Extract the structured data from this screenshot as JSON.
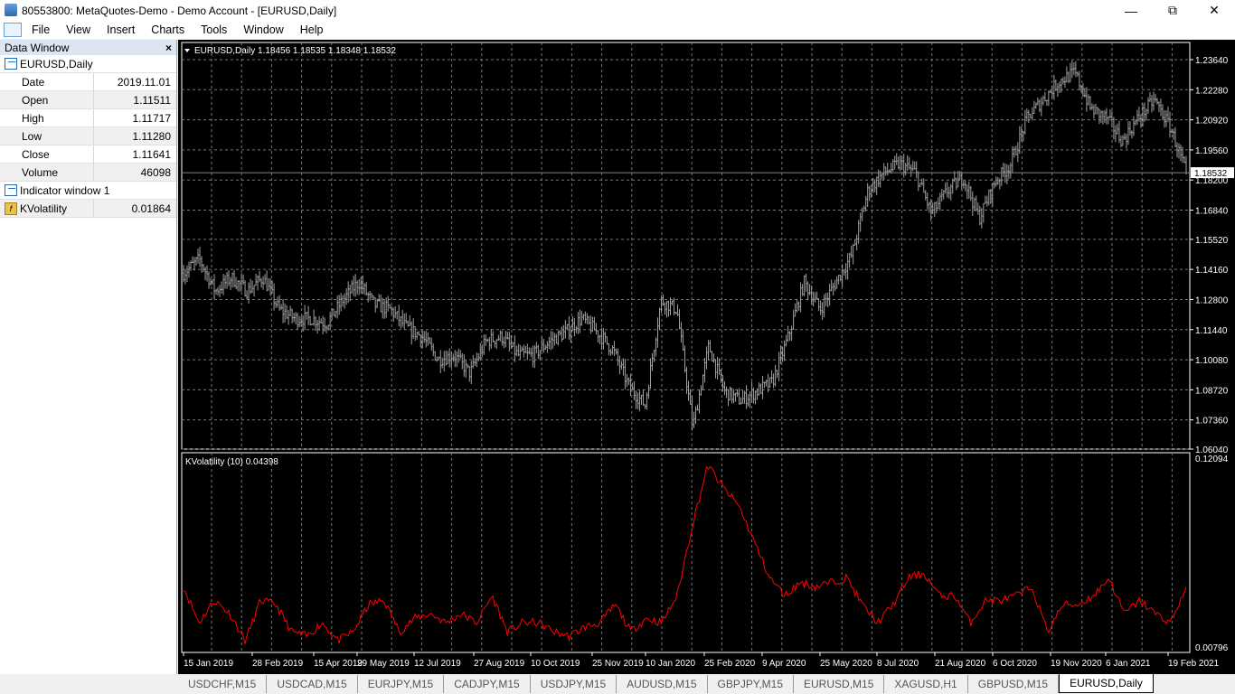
{
  "window": {
    "title": "80553800: MetaQuotes-Demo - Demo Account - [EURUSD,Daily]"
  },
  "menu": [
    "File",
    "View",
    "Insert",
    "Charts",
    "Tools",
    "Window",
    "Help"
  ],
  "data_window": {
    "title": "Data Window",
    "symbol": "EURUSD,Daily",
    "rows": [
      {
        "k": "Date",
        "v": "2019.11.01"
      },
      {
        "k": "Open",
        "v": "1.11511"
      },
      {
        "k": "High",
        "v": "1.11717"
      },
      {
        "k": "Low",
        "v": "1.11280"
      },
      {
        "k": "Close",
        "v": "1.11641"
      },
      {
        "k": "Volume",
        "v": "46098"
      }
    ],
    "indicator_group": "Indicator window 1",
    "indicator": {
      "k": "KVolatility",
      "v": "0.01864"
    }
  },
  "tabs": [
    "USDCHF,M15",
    "USDCAD,M15",
    "EURJPY,M15",
    "CADJPY,M15",
    "USDJPY,M15",
    "AUDUSD,M15",
    "GBPJPY,M15",
    "EURUSD,M15",
    "XAGUSD,H1",
    "GBPUSD,M15",
    "EURUSD,Daily"
  ],
  "active_tab": 10,
  "chart_data": {
    "type": "bar",
    "symbol_label": "EURUSD,Daily",
    "ohlc_label": "1.18456 1.18535 1.18348 1.18532",
    "price_ticks": [
      "1.23640",
      "1.22280",
      "1.20920",
      "1.19560",
      "1.18200",
      "1.16840",
      "1.15520",
      "1.14160",
      "1.12800",
      "1.11440",
      "1.10080",
      "1.08720",
      "1.07360",
      "1.06040"
    ],
    "ylim": [
      1.0604,
      1.2364
    ],
    "current_price": "1.18532",
    "bar_color": "#a0a0a0",
    "price_line_color": "#778899",
    "closes_sampled": [
      1.14,
      1.1462,
      1.1318,
      1.1379,
      1.1318,
      1.1379,
      1.1235,
      1.1194,
      1.1194,
      1.1173,
      1.1276,
      1.1359,
      1.1256,
      1.1235,
      1.1153,
      1.1112,
      1.1009,
      1.1029,
      1.0947,
      1.1091,
      1.1112,
      1.1029,
      1.1029,
      1.1091,
      1.1132,
      1.1194,
      1.1132,
      1.105,
      1.0885,
      1.0803,
      1.1276,
      1.1235,
      1.07,
      1.107,
      1.0864,
      1.0823,
      1.0864,
      1.0906,
      1.1112,
      1.1359,
      1.1235,
      1.1359,
      1.1482,
      1.1771,
      1.1853,
      1.1894,
      1.1853,
      1.1668,
      1.1771,
      1.1833,
      1.1647,
      1.1812,
      1.1894,
      1.21,
      1.2183,
      1.2265,
      1.2306,
      1.2142,
      1.21,
      1.1997,
      1.21,
      1.2183,
      1.2059,
      1.1853
    ],
    "x_ticks": [
      "15 Jan 2019",
      "28 Feb 2019",
      "15 Apr 2019",
      "29 May 2019",
      "12 Jul 2019",
      "27 Aug 2019",
      "10 Oct 2019",
      "25 Nov 2019",
      "10 Jan 2020",
      "25 Feb 2020",
      "9 Apr 2020",
      "25 May 2020",
      "8 Jul 2020",
      "21 Aug 2020",
      "6 Oct 2020",
      "19 Nov 2020",
      "6 Jan 2021",
      "19 Feb 2021"
    ],
    "indicator": {
      "label": "KVolatility (10) 0.04398",
      "ylim": [
        0.00796,
        0.12094
      ],
      "ticks": [
        "0.12094",
        "0.00796"
      ],
      "color": "#ff0000",
      "values_sampled": [
        0.044,
        0.0225,
        0.0359,
        0.0279,
        0.0117,
        0.0359,
        0.0333,
        0.0171,
        0.0144,
        0.0225,
        0.0117,
        0.0171,
        0.0333,
        0.0359,
        0.0171,
        0.0252,
        0.0279,
        0.0225,
        0.0279,
        0.0225,
        0.0386,
        0.0171,
        0.0225,
        0.0225,
        0.0171,
        0.0144,
        0.0198,
        0.0225,
        0.0333,
        0.0171,
        0.0252,
        0.0225,
        0.0386,
        0.0817,
        0.1166,
        0.1032,
        0.0924,
        0.0709,
        0.0494,
        0.0386,
        0.0467,
        0.044,
        0.0467,
        0.0494,
        0.0333,
        0.0225,
        0.0333,
        0.0494,
        0.0521,
        0.0386,
        0.0386,
        0.0225,
        0.0359,
        0.0359,
        0.0386,
        0.044,
        0.0171,
        0.0333,
        0.0333,
        0.0386,
        0.0494,
        0.0279,
        0.0359,
        0.0279,
        0.0225,
        0.044
      ]
    }
  }
}
